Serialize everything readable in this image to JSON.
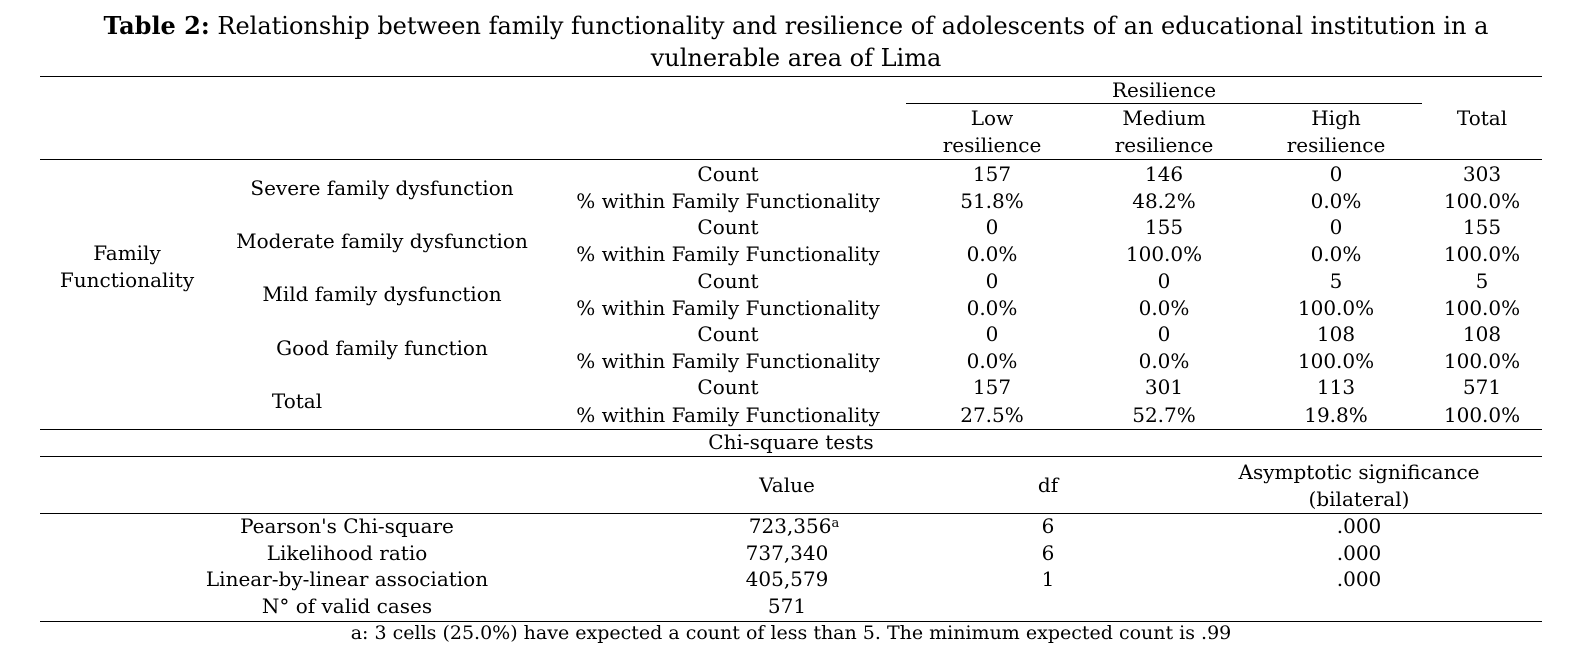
{
  "title": {
    "label": "Table 2:",
    "text": "Relationship between family functionality and resilience of adolescents of an educational institution in a vulnerable area of Lima"
  },
  "crosstab": {
    "group_header": "Resilience",
    "columns": [
      "Low resilience",
      "Medium resilience",
      "High resilience"
    ],
    "total_header": "Total",
    "row_variable": "Family Functionality",
    "stat_labels": {
      "count": "Count",
      "pct": "% within Family Functionality"
    },
    "rows": [
      {
        "label": "Severe family dysfunction",
        "count": [
          "157",
          "146",
          "0",
          "303"
        ],
        "pct": [
          "51.8%",
          "48.2%",
          "0.0%",
          "100.0%"
        ]
      },
      {
        "label": "Moderate family dysfunction",
        "count": [
          "0",
          "155",
          "0",
          "155"
        ],
        "pct": [
          "0.0%",
          "100.0%",
          "0.0%",
          "100.0%"
        ]
      },
      {
        "label": "Mild family dysfunction",
        "count": [
          "0",
          "0",
          "5",
          "5"
        ],
        "pct": [
          "0.0%",
          "0.0%",
          "100.0%",
          "100.0%"
        ]
      },
      {
        "label": "Good family function",
        "count": [
          "0",
          "0",
          "108",
          "108"
        ],
        "pct": [
          "0.0%",
          "0.0%",
          "100.0%",
          "100.0%"
        ]
      },
      {
        "label": "Total",
        "count": [
          "157",
          "301",
          "113",
          "571"
        ],
        "pct": [
          "27.5%",
          "52.7%",
          "19.8%",
          "100.0%"
        ]
      }
    ]
  },
  "chi_square": {
    "title": "Chi-square tests",
    "headers": [
      "Value",
      "df",
      "Asymptotic significance (bilateral)"
    ],
    "rows": [
      {
        "label": "Pearson's Chi-square",
        "value": "723,356",
        "sup": "a",
        "df": "6",
        "sig": ".000"
      },
      {
        "label": "Likelihood ratio",
        "value": "737,340",
        "sup": "",
        "df": "6",
        "sig": ".000"
      },
      {
        "label": "Linear-by-linear association",
        "value": "405,579",
        "sup": "",
        "df": "1",
        "sig": ".000"
      },
      {
        "label": "N° of valid cases",
        "value": "571",
        "sup": "",
        "df": "",
        "sig": ""
      }
    ]
  },
  "footnote": "a: 3 cells (25.0%) have expected a count of less than 5. The minimum expected count is .99"
}
